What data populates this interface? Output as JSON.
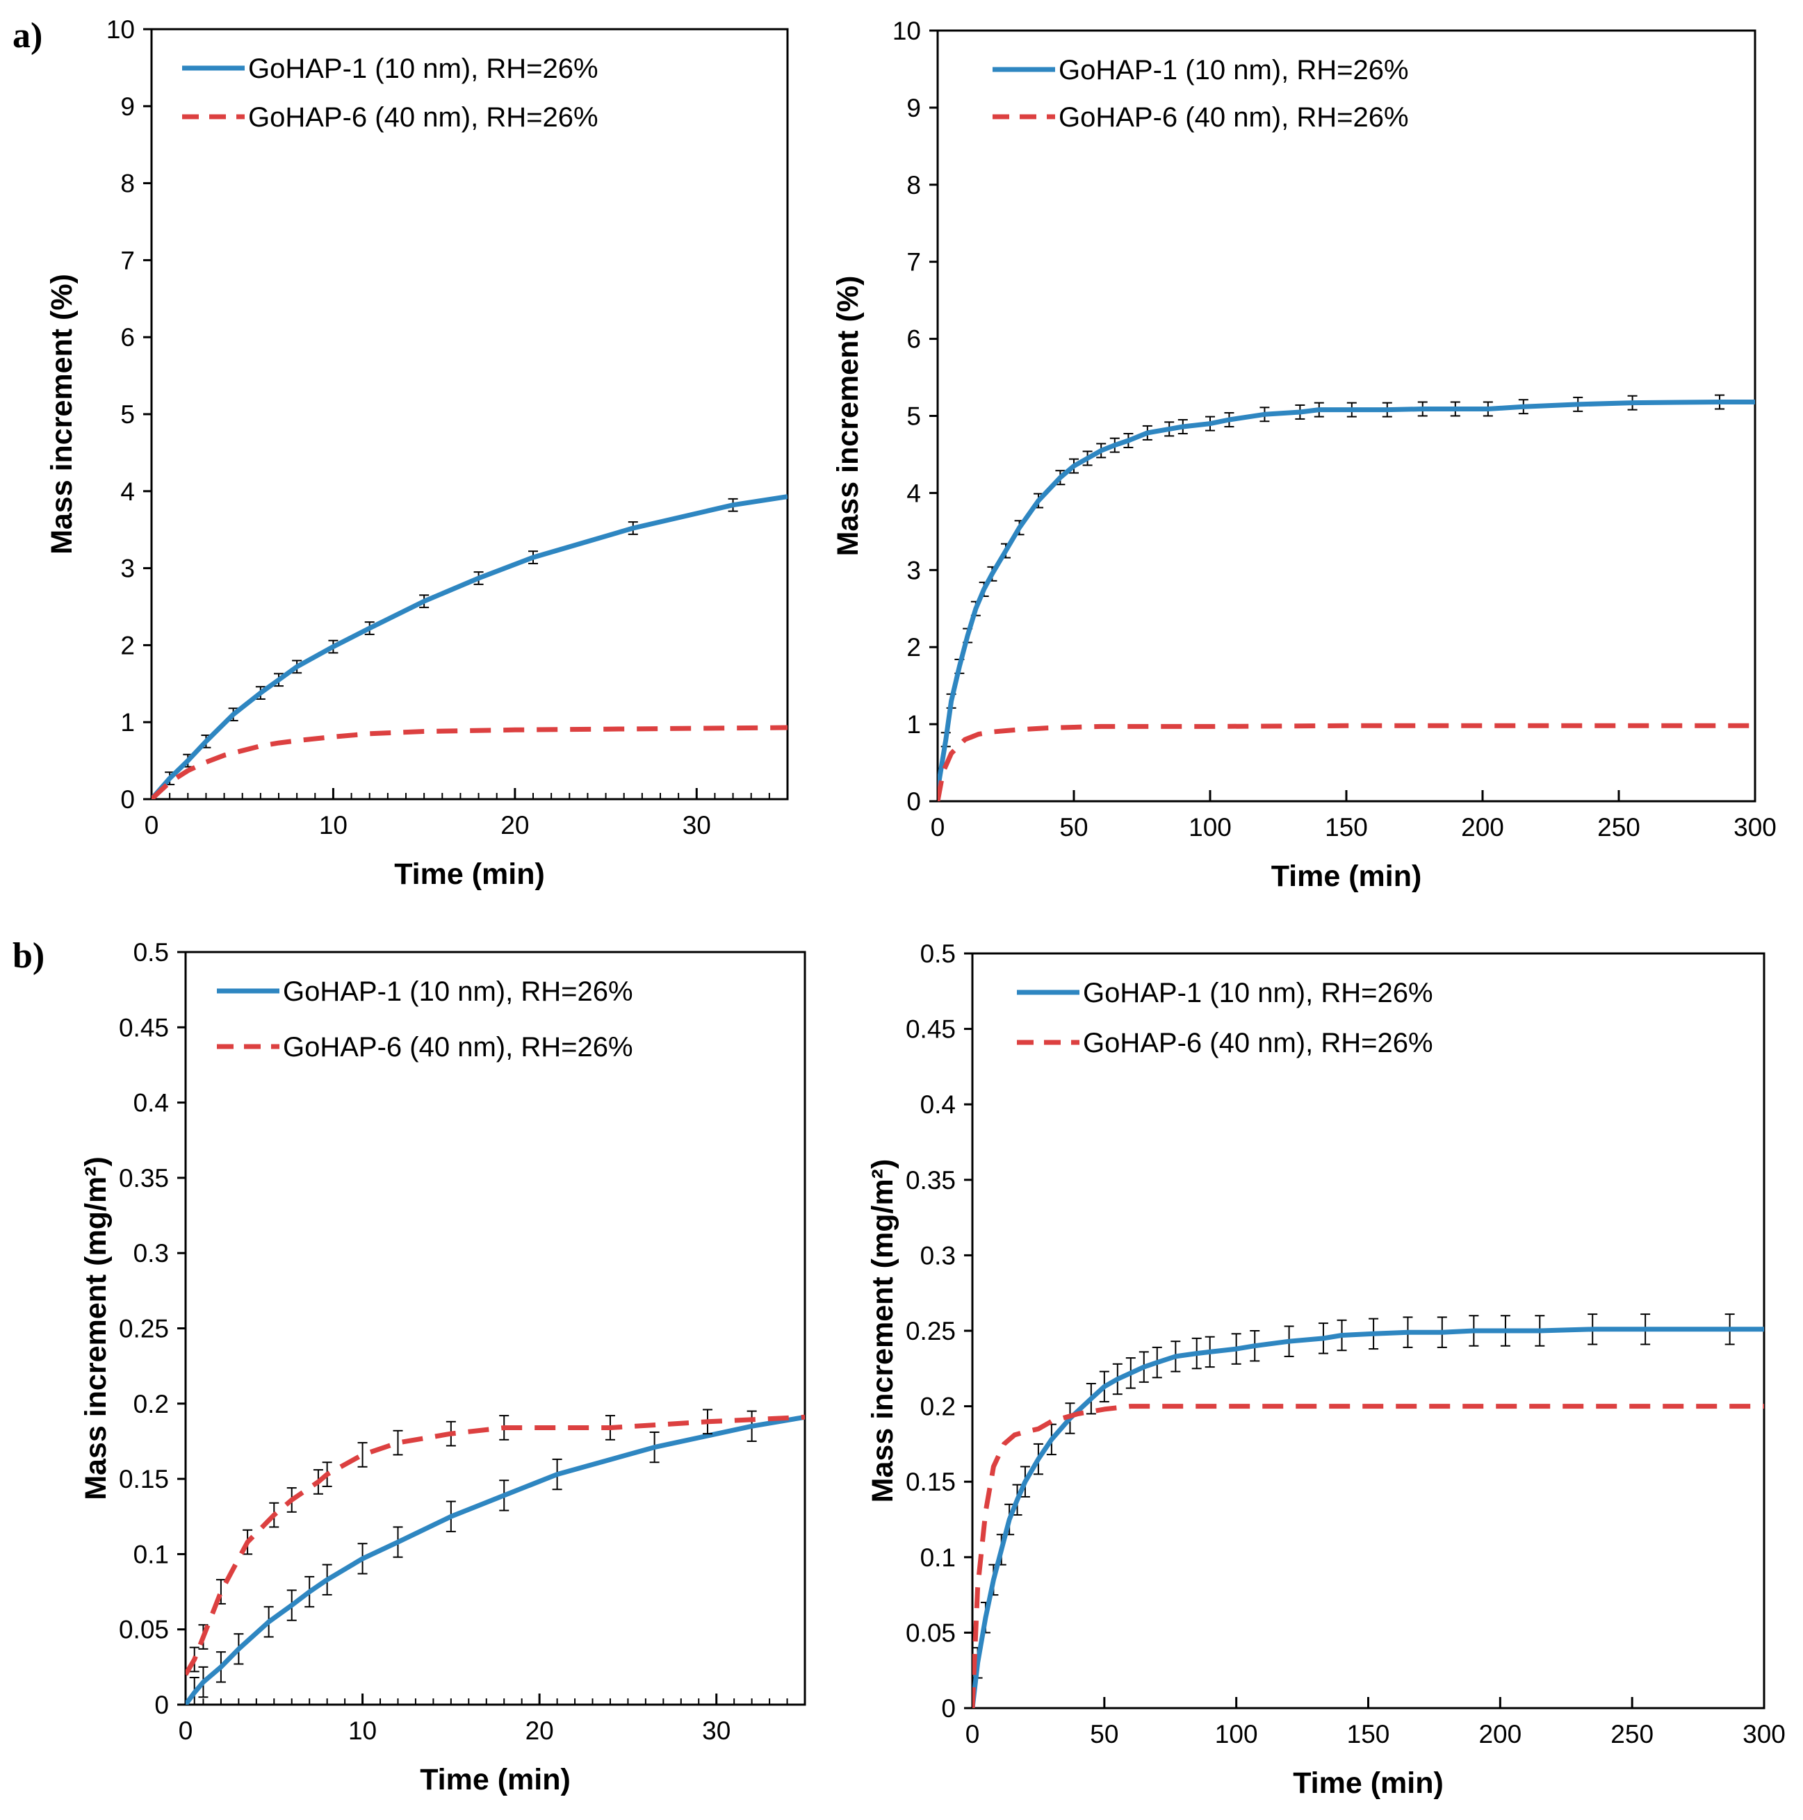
{
  "panel_labels": [
    "a)",
    "b)"
  ],
  "colors": {
    "series1": "#2e86c1",
    "series2": "#dc4040",
    "axis": "#000000"
  },
  "chart_data": [
    {
      "type": "line",
      "panel": "a) left",
      "title": "",
      "xlabel": "Time (min)",
      "ylabel": "Mass increment (%)",
      "xlim": [
        0,
        35
      ],
      "ylim": [
        0,
        10
      ],
      "xticks": [
        0,
        10,
        20,
        30
      ],
      "yticks": [
        0,
        1,
        2,
        3,
        4,
        5,
        6,
        7,
        8,
        9,
        10
      ],
      "xminor": 1,
      "legend": "top-left",
      "series": [
        {
          "name": "GoHAP-1 (10 nm), RH=26%",
          "style": "solid",
          "x": [
            0,
            1,
            2,
            3,
            4.5,
            6,
            7,
            8,
            10,
            12,
            15,
            18,
            21,
            26.5,
            32,
            35
          ],
          "y": [
            0,
            0.27,
            0.5,
            0.75,
            1.1,
            1.38,
            1.55,
            1.72,
            1.98,
            2.22,
            2.57,
            2.87,
            3.14,
            3.52,
            3.82,
            3.93
          ],
          "errorbar_x": [
            1,
            2,
            3,
            4.5,
            6,
            7,
            8,
            10,
            12,
            15,
            18,
            21,
            26.5,
            32
          ],
          "error": 0.08
        },
        {
          "name": "GoHAP-6 (40 nm), RH=26%",
          "style": "dashed",
          "x": [
            0,
            1,
            2,
            3,
            4,
            5,
            6,
            7,
            8,
            10,
            12,
            15,
            20,
            25,
            30,
            35
          ],
          "y": [
            0,
            0.22,
            0.37,
            0.48,
            0.57,
            0.63,
            0.69,
            0.73,
            0.76,
            0.81,
            0.85,
            0.88,
            0.9,
            0.91,
            0.92,
            0.93
          ]
        }
      ]
    },
    {
      "type": "line",
      "panel": "a) right",
      "title": "",
      "xlabel": "Time (min)",
      "ylabel": "Mass increment (%)",
      "xlim": [
        0,
        300
      ],
      "ylim": [
        0,
        10
      ],
      "xticks": [
        0,
        50,
        100,
        150,
        200,
        250,
        300
      ],
      "yticks": [
        0,
        1,
        2,
        3,
        4,
        5,
        6,
        7,
        8,
        9,
        10
      ],
      "xminor": 0,
      "legend": "top-left",
      "series": [
        {
          "name": "GoHAP-1 (10 nm), RH=26%",
          "style": "solid",
          "x": [
            0,
            3,
            5,
            8,
            11,
            14,
            17,
            20,
            25,
            30,
            37,
            45,
            50,
            55,
            60,
            65,
            70,
            77,
            85,
            90,
            100,
            107,
            120,
            133,
            140,
            152,
            165,
            178,
            190,
            202,
            215,
            235,
            255,
            287,
            300
          ],
          "y": [
            0.15,
            0.8,
            1.3,
            1.75,
            2.15,
            2.5,
            2.75,
            2.95,
            3.25,
            3.55,
            3.9,
            4.2,
            4.35,
            4.45,
            4.55,
            4.62,
            4.68,
            4.78,
            4.83,
            4.86,
            4.9,
            4.95,
            5.02,
            5.05,
            5.08,
            5.08,
            5.08,
            5.09,
            5.09,
            5.09,
            5.12,
            5.15,
            5.17,
            5.18,
            5.18
          ],
          "errorbar_x": [
            3,
            5,
            8,
            11,
            14,
            17,
            20,
            25,
            30,
            37,
            45,
            50,
            55,
            60,
            65,
            70,
            77,
            85,
            90,
            100,
            107,
            120,
            133,
            140,
            152,
            165,
            178,
            190,
            202,
            215,
            235,
            255,
            287
          ],
          "error": 0.09
        },
        {
          "name": "GoHAP-6 (40 nm), RH=26%",
          "style": "dashed",
          "x": [
            0,
            2,
            5,
            10,
            15,
            20,
            30,
            40,
            50,
            60,
            80,
            100,
            150,
            200,
            250,
            300
          ],
          "y": [
            0,
            0.38,
            0.62,
            0.8,
            0.87,
            0.9,
            0.93,
            0.95,
            0.96,
            0.97,
            0.97,
            0.97,
            0.98,
            0.98,
            0.98,
            0.98
          ]
        }
      ]
    },
    {
      "type": "line",
      "panel": "b) left",
      "title": "",
      "xlabel": "Time (min)",
      "ylabel": "Mass increment (mg/m²)",
      "xlim": [
        0,
        35
      ],
      "ylim": [
        0,
        0.5
      ],
      "xticks": [
        0,
        10,
        20,
        30
      ],
      "yticks": [
        0,
        0.05,
        0.1,
        0.15,
        0.2,
        0.25,
        0.3,
        0.35,
        0.4,
        0.45,
        0.5
      ],
      "xminor": 1,
      "legend": "top-left",
      "series": [
        {
          "name": "GoHAP-1 (10 nm), RH=26%",
          "style": "solid",
          "x": [
            0,
            0.5,
            1,
            2,
            3,
            4.7,
            6,
            7,
            8,
            10,
            12,
            15,
            18,
            21,
            26.5,
            32,
            35
          ],
          "y": [
            0,
            0.008,
            0.015,
            0.025,
            0.037,
            0.055,
            0.066,
            0.075,
            0.083,
            0.097,
            0.108,
            0.125,
            0.139,
            0.153,
            0.171,
            0.185,
            0.191
          ],
          "errorbar_x": [
            0.5,
            1,
            2,
            3,
            4.7,
            6,
            7,
            8,
            10,
            12,
            15,
            18,
            21,
            26.5,
            32
          ],
          "error": 0.01
        },
        {
          "name": "GoHAP-6 (40 nm), RH=26%",
          "style": "dashed",
          "x": [
            0,
            0.5,
            1,
            2,
            3.5,
            5,
            6,
            7.5,
            8,
            10,
            12,
            15,
            18,
            24,
            29.5,
            35
          ],
          "y": [
            0.02,
            0.03,
            0.045,
            0.075,
            0.108,
            0.126,
            0.136,
            0.148,
            0.153,
            0.166,
            0.174,
            0.18,
            0.184,
            0.184,
            0.188,
            0.191
          ],
          "errorbar_x": [
            0.5,
            1,
            2,
            3.5,
            5,
            6,
            7.5,
            8,
            10,
            12,
            15,
            18,
            24,
            29.5
          ],
          "error": 0.008
        }
      ]
    },
    {
      "type": "line",
      "panel": "b) right",
      "title": "",
      "xlabel": "Time (min)",
      "ylabel": "Mass increment (mg/m²)",
      "xlim": [
        0,
        300
      ],
      "ylim": [
        0,
        0.5
      ],
      "xticks": [
        0,
        50,
        100,
        150,
        200,
        250,
        300
      ],
      "yticks": [
        0,
        0.05,
        0.1,
        0.15,
        0.2,
        0.25,
        0.3,
        0.35,
        0.4,
        0.45,
        0.5
      ],
      "xminor": 0,
      "legend": "top-left",
      "series": [
        {
          "name": "GoHAP-1 (10 nm), RH=26%",
          "style": "solid",
          "x": [
            0,
            2,
            5,
            8,
            11,
            14,
            17,
            20,
            25,
            30,
            37,
            45,
            50,
            55,
            60,
            65,
            70,
            77,
            85,
            90,
            100,
            107,
            120,
            133,
            140,
            152,
            165,
            178,
            190,
            202,
            215,
            235,
            255,
            287,
            300
          ],
          "y": [
            0,
            0.03,
            0.06,
            0.085,
            0.105,
            0.125,
            0.138,
            0.15,
            0.165,
            0.178,
            0.192,
            0.205,
            0.213,
            0.218,
            0.222,
            0.226,
            0.229,
            0.233,
            0.235,
            0.236,
            0.238,
            0.24,
            0.243,
            0.245,
            0.247,
            0.248,
            0.249,
            0.249,
            0.25,
            0.25,
            0.25,
            0.251,
            0.251,
            0.251,
            0.251
          ],
          "errorbar_x": [
            2,
            5,
            8,
            11,
            14,
            17,
            20,
            25,
            30,
            37,
            45,
            50,
            55,
            60,
            65,
            70,
            77,
            85,
            90,
            100,
            107,
            120,
            133,
            140,
            152,
            165,
            178,
            190,
            202,
            215,
            235,
            255,
            287
          ],
          "error": 0.01
        },
        {
          "name": "GoHAP-6 (40 nm), RH=26%",
          "style": "dashed",
          "x": [
            0,
            2,
            5,
            8,
            12,
            16,
            20,
            25,
            30,
            40,
            50,
            60,
            80,
            100,
            150,
            200,
            250,
            300
          ],
          "y": [
            0,
            0.08,
            0.13,
            0.16,
            0.175,
            0.181,
            0.183,
            0.185,
            0.19,
            0.195,
            0.198,
            0.2,
            0.2,
            0.2,
            0.2,
            0.2,
            0.2,
            0.2
          ]
        }
      ]
    }
  ]
}
